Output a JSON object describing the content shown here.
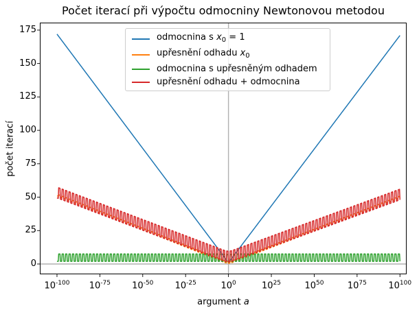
{
  "chart_data": {
    "type": "line",
    "title": "Počet iterací při výpočtu odmocniny Newtonovou metodou",
    "xlabel_prefix": "argument ",
    "xlabel_var": "a",
    "ylabel": "počet iterací",
    "x_scale": "log",
    "tick_base": "10",
    "x_tick_exponents": [
      -100,
      -75,
      -50,
      -25,
      0,
      25,
      50,
      75,
      100
    ],
    "y_ticks": [
      0,
      25,
      50,
      75,
      100,
      125,
      150,
      175
    ],
    "xlim_exponents": [
      -110,
      103.9
    ],
    "ylim": [
      -7.7,
      180.6
    ],
    "grid": "off",
    "legend_position": "upper center",
    "reference_lines": {
      "vertical_at_exponent": 0,
      "horizontal_at": 0,
      "color": "#b0b0b0"
    },
    "frame_color": "#000000",
    "series": [
      {
        "name": "odmocnina s x₀ = 1",
        "color": "#1f77b4",
        "label_parts": [
          {
            "t": "odmocnina s "
          },
          {
            "t": "x",
            "s": "i"
          },
          {
            "t": "0",
            "s": "sub"
          },
          {
            "t": " = 1"
          }
        ],
        "base_points": [
          [
            -100,
            172
          ],
          [
            0,
            1
          ],
          [
            100,
            171
          ]
        ],
        "tooth_amplitude": 0,
        "tooth_period_decades": 0
      },
      {
        "name": "upřesnění odhadu x₀",
        "color": "#ff7f0e",
        "label_parts": [
          {
            "t": "upřesnění odhadu "
          },
          {
            "t": "x",
            "s": "i"
          },
          {
            "t": "0",
            "s": "sub"
          }
        ],
        "base_points": [
          [
            -100,
            51
          ],
          [
            -2,
            1
          ],
          [
            0,
            0.5
          ],
          [
            2,
            1
          ],
          [
            100,
            49.5
          ]
        ],
        "tooth_amplitude": 1.3,
        "tooth_period_decades": 2
      },
      {
        "name": "odmocnina s upřesněným odhadem",
        "color": "#2ca02c",
        "label_parts": [
          {
            "t": "odmocnina s upřesněným odhadem"
          }
        ],
        "base_points": [
          [
            -100,
            2
          ],
          [
            -4,
            2
          ],
          [
            0,
            1.5
          ],
          [
            4,
            2
          ],
          [
            100,
            2
          ]
        ],
        "tooth_amplitude": 5.5,
        "tooth_period_decades": 2
      },
      {
        "name": "upřesnění odhadu + odmocnina",
        "color": "#d62728",
        "label_parts": [
          {
            "t": "upřesnění odhadu + odmocnina"
          }
        ],
        "base_points": [
          [
            -100,
            49.5
          ],
          [
            -2,
            2
          ],
          [
            0,
            1.5
          ],
          [
            2,
            2
          ],
          [
            100,
            48
          ]
        ],
        "tooth_amplitude": 8,
        "tooth_period_decades": 2
      }
    ]
  }
}
